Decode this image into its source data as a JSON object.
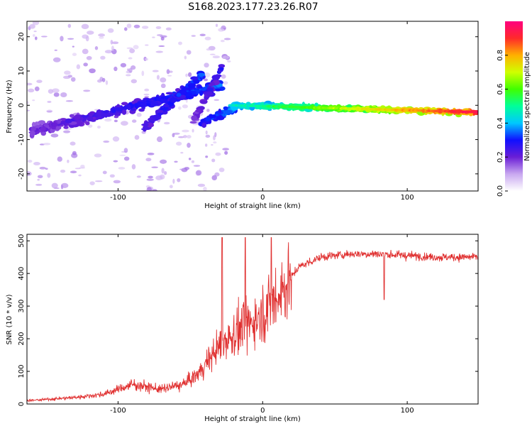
{
  "figure": {
    "title": "S168.2023.177.23.26.R07"
  },
  "chart_data": [
    {
      "type": "heatmap",
      "xlabel": "Height of straight line (km)",
      "ylabel": "Frequency (Hz)",
      "xlim": [
        -163,
        149
      ],
      "ylim": [
        -25,
        24.5
      ],
      "xticks": [
        -100,
        0,
        100
      ],
      "yticks": [
        -20,
        -10,
        0,
        10,
        20
      ],
      "colorbar": {
        "label": "Normalized spectral amplitude",
        "range": [
          0,
          1
        ],
        "ticks": [
          0.0,
          0.2,
          0.4,
          0.6,
          0.8
        ],
        "colors": [
          "#ffffff",
          "#c9a8f0",
          "#6a1ed6",
          "#1010ff",
          "#00c8ff",
          "#00ff9a",
          "#40ff00",
          "#d0ff00",
          "#ffb000",
          "#ff2a2a",
          "#ff007f"
        ]
      },
      "bands": [
        {
          "x": [
            -160,
            -28
          ],
          "f": [
            -7.5,
            6.0
          ],
          "width": 3.0,
          "amp": [
            0.2,
            0.35
          ]
        },
        {
          "x": [
            -82,
            -42
          ],
          "f": [
            -6.5,
            9.0
          ],
          "width": 2.2,
          "amp": [
            0.25,
            0.35
          ]
        },
        {
          "x": [
            -48,
            -28
          ],
          "f": [
            -5.0,
            11.0
          ],
          "width": 2.0,
          "amp": [
            0.2,
            0.3
          ]
        },
        {
          "x": [
            -42,
            -18
          ],
          "f": [
            -5.0,
            -0.5
          ],
          "width": 2.2,
          "amp": [
            0.3,
            0.4
          ]
        },
        {
          "x": [
            -22,
            148
          ],
          "f": [
            0.0,
            -2.0
          ],
          "width": 1.3,
          "amp": [
            0.45,
            0.95
          ]
        }
      ]
    },
    {
      "type": "line",
      "xlabel": "Height of straight line (km)",
      "ylabel": "SNR (10 * v/v)",
      "xlim": [
        -163,
        149
      ],
      "ylim": [
        0,
        520
      ],
      "xticks": [
        -100,
        0,
        100
      ],
      "yticks": [
        0,
        100,
        200,
        300,
        400,
        500
      ],
      "color": "#e03030",
      "envelope": [
        {
          "x": -163,
          "snr": 10
        },
        {
          "x": -130,
          "snr": 20
        },
        {
          "x": -110,
          "snr": 30
        },
        {
          "x": -90,
          "snr": 60
        },
        {
          "x": -70,
          "snr": 45
        },
        {
          "x": -55,
          "snr": 60
        },
        {
          "x": -45,
          "snr": 90
        },
        {
          "x": -35,
          "snr": 150
        },
        {
          "x": -25,
          "snr": 200
        },
        {
          "x": -15,
          "snr": 230
        },
        {
          "x": -5,
          "snr": 260
        },
        {
          "x": 5,
          "snr": 300
        },
        {
          "x": 15,
          "snr": 360
        },
        {
          "x": 25,
          "snr": 420
        },
        {
          "x": 40,
          "snr": 450
        },
        {
          "x": 60,
          "snr": 460
        },
        {
          "x": 80,
          "snr": 460
        },
        {
          "x": 100,
          "snr": 455
        },
        {
          "x": 120,
          "snr": 450
        },
        {
          "x": 149,
          "snr": 450
        }
      ],
      "annotations": [
        {
          "x": -28,
          "snr": 510
        },
        {
          "x": -12,
          "snr": 510
        },
        {
          "x": 6,
          "snr": 510
        },
        {
          "x": 84,
          "snr": 320
        }
      ]
    }
  ]
}
